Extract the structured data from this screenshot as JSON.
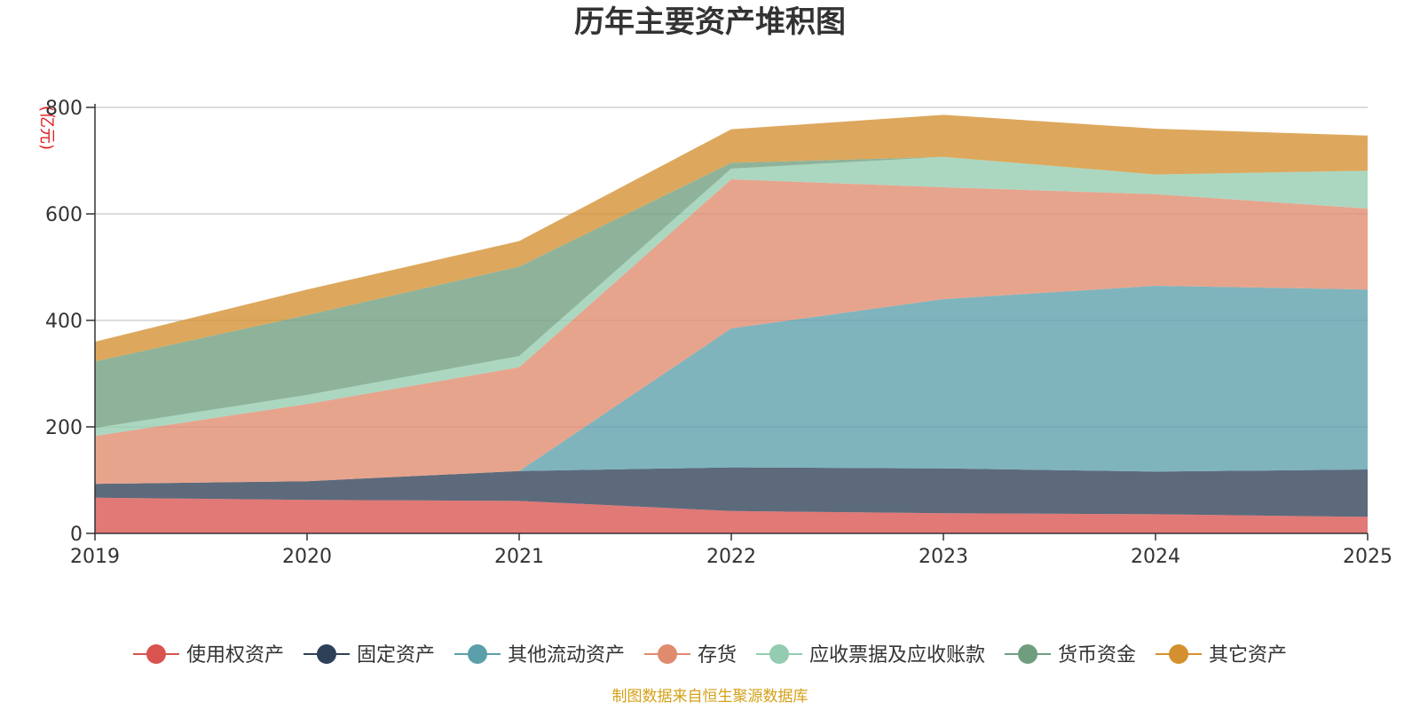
{
  "chart_data": {
    "type": "area",
    "stacked": true,
    "title": "历年主要资产堆积图",
    "y_unit_label": "(亿元)",
    "x": [
      "2019",
      "2020",
      "2021",
      "2022",
      "2023",
      "2024",
      "2025"
    ],
    "y_ticks": [
      "0",
      "200",
      "400",
      "600",
      "800"
    ],
    "ylim": [
      0,
      800
    ],
    "grid": true,
    "legend_position": "bottom",
    "series": [
      {
        "name": "使用权资产",
        "color": "#d9534f",
        "values": [
          67,
          63,
          61,
          42,
          38,
          36,
          31
        ]
      },
      {
        "name": "固定资产",
        "color": "#2e4057",
        "values": [
          26,
          35,
          56,
          82,
          84,
          80,
          89
        ]
      },
      {
        "name": "其他流动资产",
        "color": "#5b9fab",
        "values": [
          0,
          0,
          0,
          261,
          318,
          349,
          338
        ]
      },
      {
        "name": "存货",
        "color": "#e08b6d",
        "values": [
          90,
          145,
          195,
          280,
          210,
          172,
          152
        ]
      },
      {
        "name": "应收票据及应收账款",
        "color": "#93ccb0",
        "values": [
          15,
          17,
          21,
          20,
          57,
          37,
          71
        ]
      },
      {
        "name": "货币资金",
        "color": "#6f9e7e",
        "values": [
          125,
          150,
          168,
          11,
          0,
          0,
          0
        ]
      },
      {
        "name": "其它资产",
        "color": "#d4902f",
        "values": [
          37,
          48,
          48,
          63,
          79,
          86,
          66
        ]
      }
    ]
  },
  "source_note": "制图数据来自恒生聚源数据库"
}
